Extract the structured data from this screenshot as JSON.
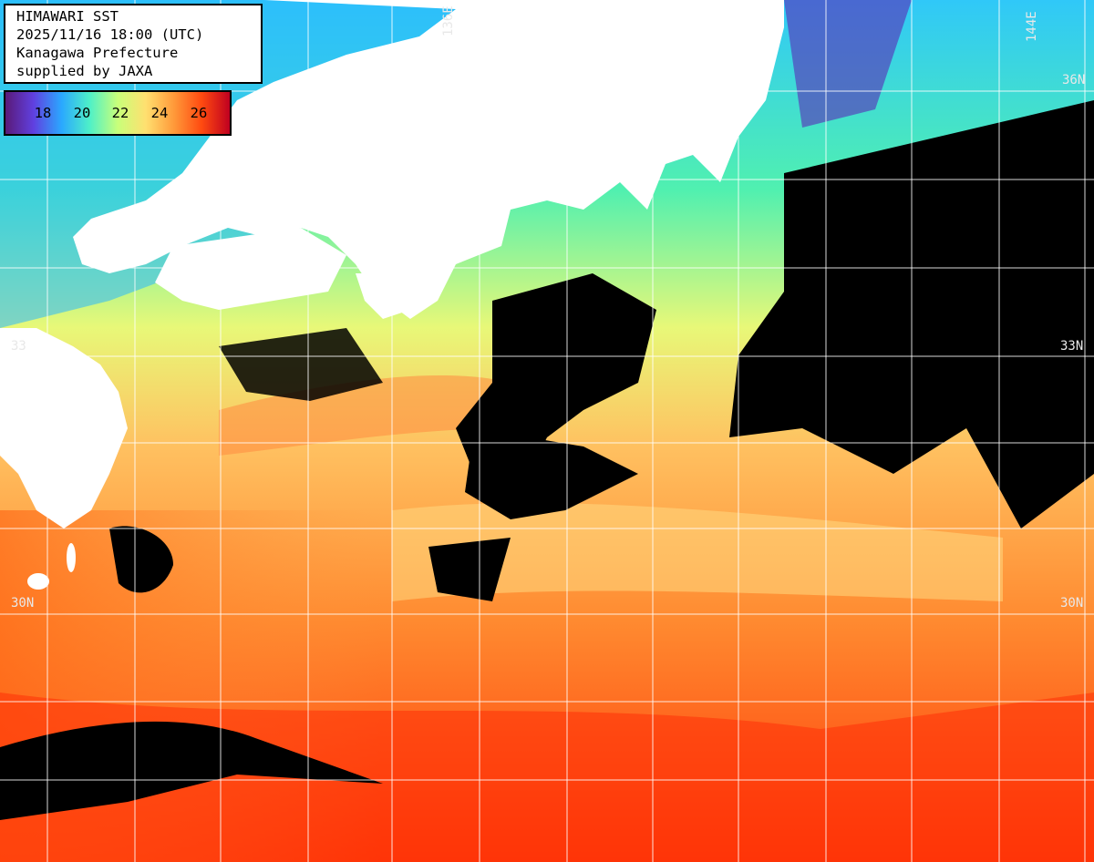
{
  "header": {
    "lines": [
      "HIMAWARI SST",
      "2025/11/16 18:00 (UTC)",
      "Kanagawa Prefecture",
      "supplied by JAXA"
    ]
  },
  "legend": {
    "ticks": [
      "18",
      "20",
      "22",
      "24",
      "26"
    ],
    "colors": [
      "#5a1a78",
      "#6040e0",
      "#2aa8ff",
      "#4ef0c8",
      "#c8ff7a",
      "#ffe070",
      "#ff9a3a",
      "#ff4a10",
      "#c00020"
    ]
  },
  "grid_labels": {
    "lat_33": "33N",
    "lat_30_right": "30N",
    "lat_30_left": "30N",
    "lat_33_left": "33",
    "lon_136": "136E",
    "lon_144": "144E",
    "lat_36": "36N"
  },
  "colors": {
    "land": "#ffffff",
    "cloud": "#000000",
    "grid": "#ffffff",
    "cold_water": "#40d8f0",
    "coastal_water": "#60f0a0",
    "warm_water": "#ffc060",
    "hot_water": "#ff5a10"
  }
}
